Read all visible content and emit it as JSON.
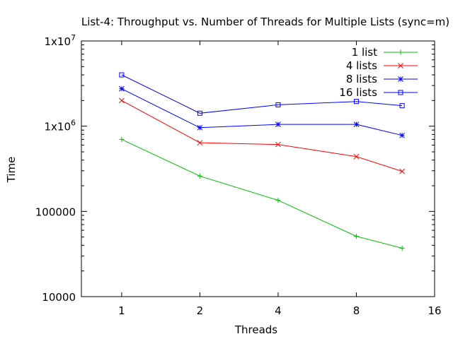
{
  "chart_data": {
    "type": "line",
    "title": "List-4: Throughput vs. Number of Threads for Multiple Lists (sync=m)",
    "xlabel": "Threads",
    "ylabel": "Time",
    "x_scale": "log2",
    "y_scale": "log10",
    "xlim": [
      0.7,
      16
    ],
    "ylim": [
      10000,
      10000000
    ],
    "x_ticks": [
      {
        "value": 1,
        "label": "1"
      },
      {
        "value": 2,
        "label": "2"
      },
      {
        "value": 4,
        "label": "4"
      },
      {
        "value": 8,
        "label": "8"
      },
      {
        "value": 16,
        "label": "16"
      }
    ],
    "y_ticks": [
      {
        "value": 10000,
        "label": "10000",
        "sup": ""
      },
      {
        "value": 100000,
        "label": "100000",
        "sup": ""
      },
      {
        "value": 1000000,
        "label": "1x10",
        "sup": "6"
      },
      {
        "value": 10000000,
        "label": "1x10",
        "sup": "7"
      }
    ],
    "grid": false,
    "legend_position": "top-right",
    "x": [
      1,
      2,
      4,
      8,
      12
    ],
    "series": [
      {
        "name": "1 list",
        "color": "#00c000",
        "marker": "plus",
        "values": [
          700000,
          260000,
          135000,
          51000,
          37000
        ]
      },
      {
        "name": "4 lists",
        "color": "#ff0000",
        "marker": "cross",
        "values": [
          2000000,
          640000,
          610000,
          440000,
          295000
        ]
      },
      {
        "name": "8 lists",
        "color": "#0000ff",
        "marker": "star",
        "values": [
          2750000,
          960000,
          1050000,
          1050000,
          780000
        ]
      },
      {
        "name": "16 lists",
        "color": "#0000ff",
        "marker": "square",
        "values": [
          4000000,
          1420000,
          1780000,
          1950000,
          1740000
        ]
      }
    ]
  }
}
